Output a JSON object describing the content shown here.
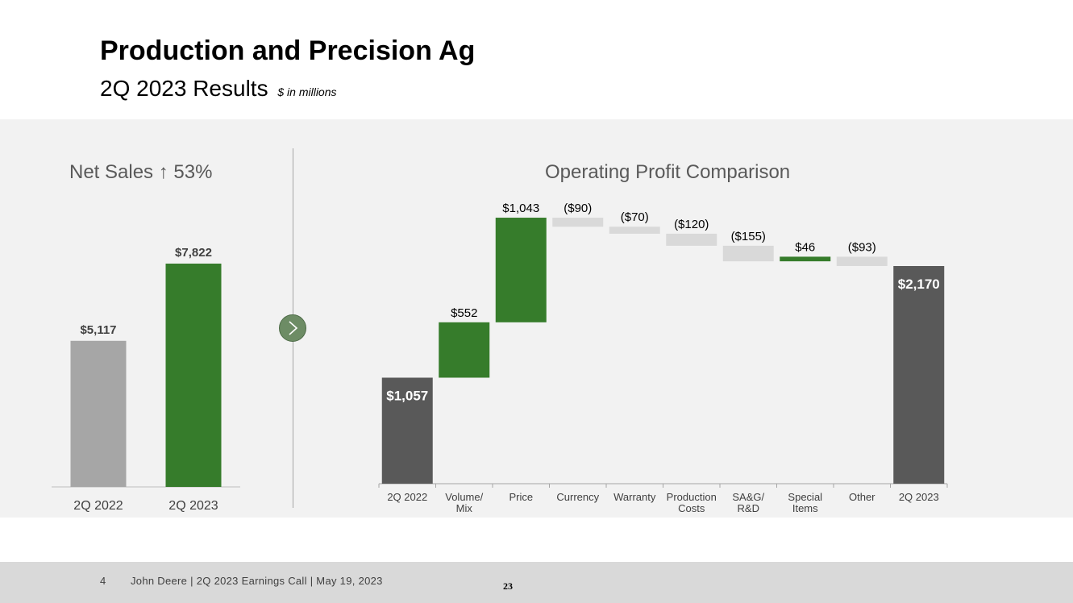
{
  "slide": {
    "title": "Production and Precision Ag",
    "subtitle": "2Q 2023 Results",
    "unit_note": "$ in millions"
  },
  "colors": {
    "green": "#367c2b",
    "dark": "#595959",
    "light_gray": "#a6a6a6",
    "neg_gray": "#d9d9d9",
    "panel": "#f2f2f2"
  },
  "chart_data": [
    {
      "type": "bar",
      "title": "Net Sales ↑ 53%",
      "categories": [
        "2Q 2022",
        "2Q 2023"
      ],
      "values": [
        5117,
        7822
      ],
      "labels": [
        "$5,117",
        "$7,822"
      ],
      "bar_colors": [
        "#a6a6a6",
        "#367c2b"
      ],
      "ylim": [
        0,
        8500
      ]
    },
    {
      "type": "waterfall",
      "title": "Operating Profit Comparison",
      "categories": [
        "2Q 2022",
        "Volume/ Mix",
        "Price",
        "Currency",
        "Warranty",
        "Production Costs",
        "SA&G/ R&D",
        "Special Items",
        "Other",
        "2Q 2023"
      ],
      "values": [
        1057,
        552,
        1043,
        -90,
        -70,
        -120,
        -155,
        46,
        -93,
        2170
      ],
      "kinds": [
        "total",
        "delta",
        "delta",
        "delta",
        "delta",
        "delta",
        "delta",
        "delta",
        "delta",
        "total"
      ],
      "labels": [
        "$1,057",
        "$552",
        "$1,043",
        "($90)",
        "($70)",
        "($120)",
        "($155)",
        "$46",
        "($93)",
        "$2,170"
      ],
      "ylim": [
        0,
        2800
      ]
    }
  ],
  "footer": {
    "slide_number": "4",
    "text": "John Deere | 2Q 2023 Earnings Call | May 19, 2023",
    "page_number": "23"
  }
}
